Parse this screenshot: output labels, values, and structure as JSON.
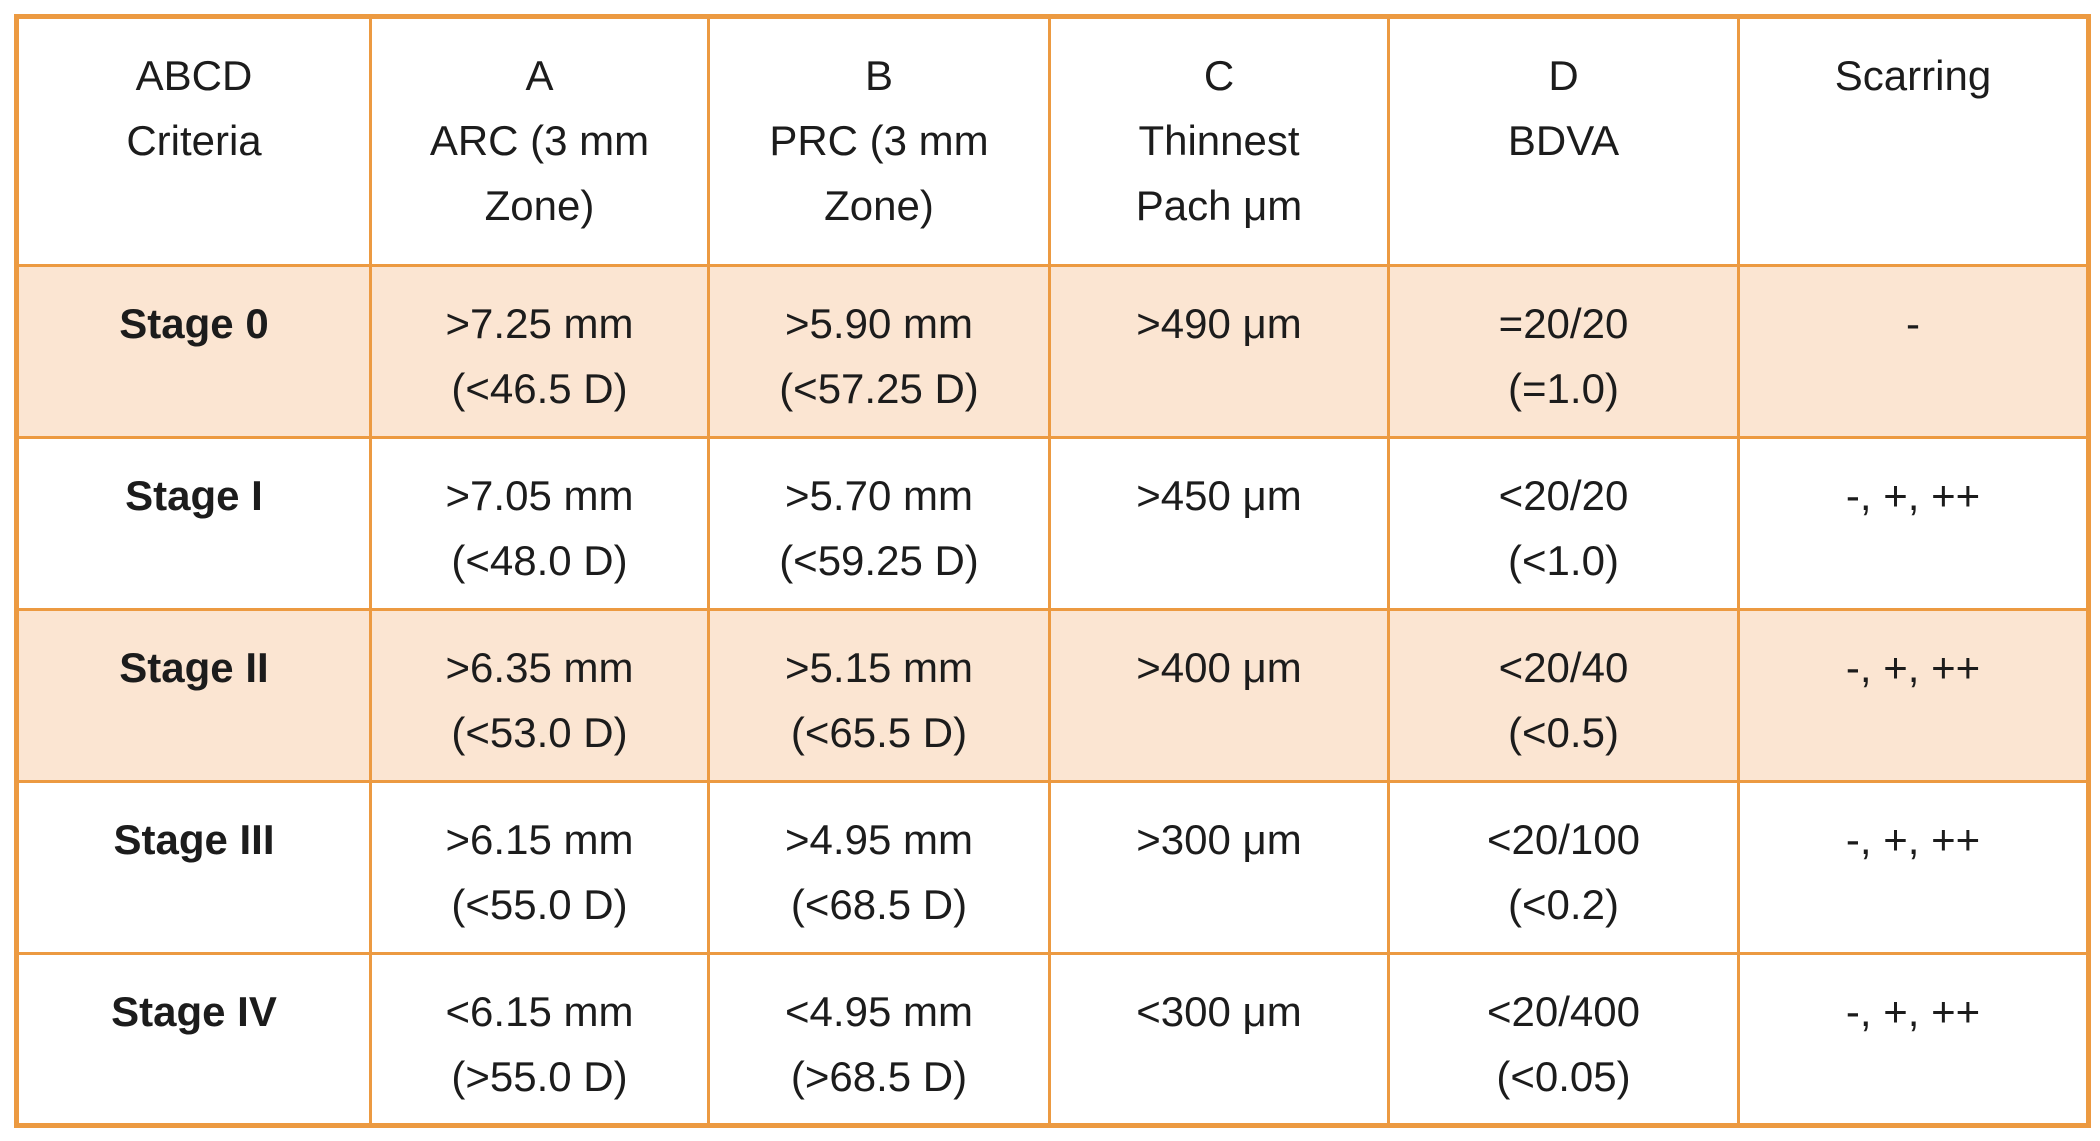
{
  "colors": {
    "border": "#EC9A41",
    "row_shade": "#FBE5D2",
    "text": "#1C1C1C",
    "background": "#FFFFFF"
  },
  "header": {
    "c0": [
      "ABCD",
      "Criteria"
    ],
    "c1": [
      "A",
      "ARC (3 mm",
      "Zone)"
    ],
    "c2": [
      "B",
      "PRC (3 mm",
      "Zone)"
    ],
    "c3": [
      "C",
      "Thinnest",
      "Pach μm"
    ],
    "c4": [
      "D",
      "BDVA"
    ],
    "c5": [
      "Scarring"
    ]
  },
  "rows": [
    {
      "stage": "Stage 0",
      "a": [
        ">7.25 mm",
        "(<46.5 D)"
      ],
      "b": [
        ">5.90 mm",
        "(<57.25 D)"
      ],
      "c": [
        ">490 μm"
      ],
      "d": [
        "=20/20",
        "(=1.0)"
      ],
      "s": [
        "-"
      ]
    },
    {
      "stage": "Stage I",
      "a": [
        ">7.05 mm",
        "(<48.0 D)"
      ],
      "b": [
        ">5.70 mm",
        "(<59.25 D)"
      ],
      "c": [
        ">450 μm"
      ],
      "d": [
        "<20/20",
        "(<1.0)"
      ],
      "s": [
        "-, +, ++"
      ]
    },
    {
      "stage": "Stage II",
      "a": [
        ">6.35 mm",
        "(<53.0 D)"
      ],
      "b": [
        ">5.15 mm",
        "(<65.5 D)"
      ],
      "c": [
        ">400 μm"
      ],
      "d": [
        "<20/40",
        "(<0.5)"
      ],
      "s": [
        "-, +, ++"
      ]
    },
    {
      "stage": "Stage III",
      "a": [
        ">6.15 mm",
        "(<55.0 D)"
      ],
      "b": [
        ">4.95 mm",
        "(<68.5 D)"
      ],
      "c": [
        ">300 μm"
      ],
      "d": [
        "<20/100",
        "(<0.2)"
      ],
      "s": [
        "-, +, ++"
      ]
    },
    {
      "stage": "Stage IV",
      "a": [
        "<6.15 mm",
        "(>55.0 D)"
      ],
      "b": [
        "<4.95 mm",
        "(>68.5 D)"
      ],
      "c": [
        "<300 μm"
      ],
      "d": [
        "<20/400",
        "(<0.05)"
      ],
      "s": [
        "-, +, ++"
      ]
    }
  ]
}
